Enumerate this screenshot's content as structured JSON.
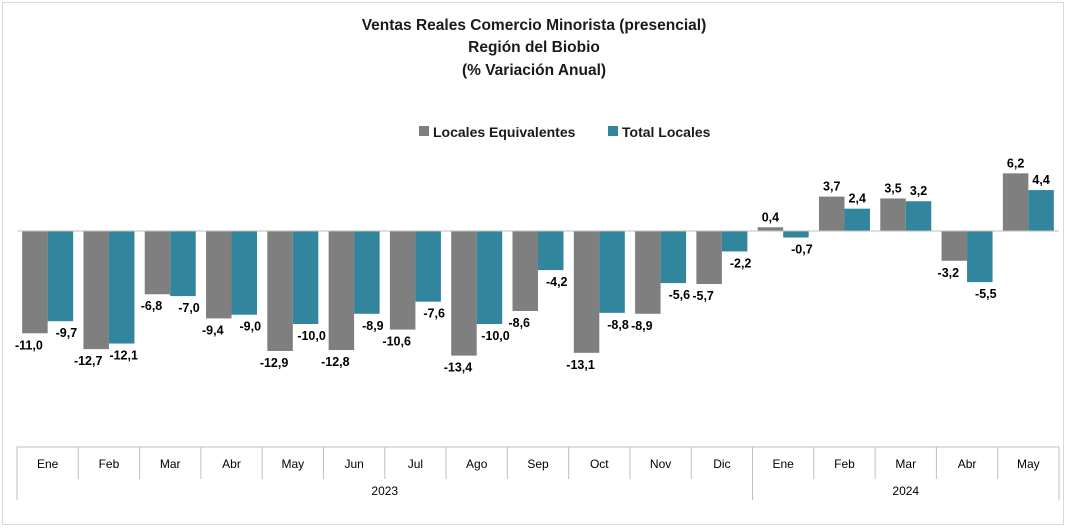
{
  "chart_data": {
    "type": "bar",
    "title": [
      "Ventas Reales Comercio Minorista (presencial)",
      "Región del Biobio",
      "(% Variación Anual)"
    ],
    "categories": [
      "Ene",
      "Feb",
      "Mar",
      "Abr",
      "May",
      "Jun",
      "Jul",
      "Ago",
      "Sep",
      "Oct",
      "Nov",
      "Dic",
      "Ene",
      "Feb",
      "Mar",
      "Abr",
      "May"
    ],
    "groups": [
      {
        "label": "2023",
        "count": 12
      },
      {
        "label": "2024",
        "count": 5
      }
    ],
    "series": [
      {
        "name": "Locales Equivalentes",
        "color": "#7f7f7f",
        "values": [
          -11.0,
          -12.7,
          -6.8,
          -9.4,
          -12.9,
          -12.8,
          -10.6,
          -13.4,
          -8.6,
          -13.1,
          -8.9,
          -5.7,
          0.4,
          3.7,
          3.5,
          -3.2,
          6.2
        ],
        "labels": [
          "-11,0",
          "-12,7",
          "-6,8",
          "-9,4",
          "-12,9",
          "-12,8",
          "-10,6",
          "-13,4",
          "-8,6",
          "-13,1",
          "-8,9",
          "-5,7",
          "0,4",
          "3,7",
          "3,5",
          "-3,2",
          "6,2"
        ]
      },
      {
        "name": "Total Locales",
        "color": "#31859c",
        "values": [
          -9.7,
          -12.1,
          -7.0,
          -9.0,
          -10.0,
          -8.9,
          -7.6,
          -10.0,
          -4.2,
          -8.8,
          -5.6,
          -2.2,
          -0.7,
          2.4,
          3.2,
          -5.5,
          4.4
        ],
        "labels": [
          "-9,7",
          "-12,1",
          "-7,0",
          "-9,0",
          "-10,0",
          "-8,9",
          "-7,6",
          "-10,0",
          "-4,2",
          "-8,8",
          "-5,6",
          "-2,2",
          "-0,7",
          "2,4",
          "3,2",
          "-5,5",
          "4,4"
        ]
      }
    ],
    "legend_position": "top-center",
    "grid": false
  }
}
